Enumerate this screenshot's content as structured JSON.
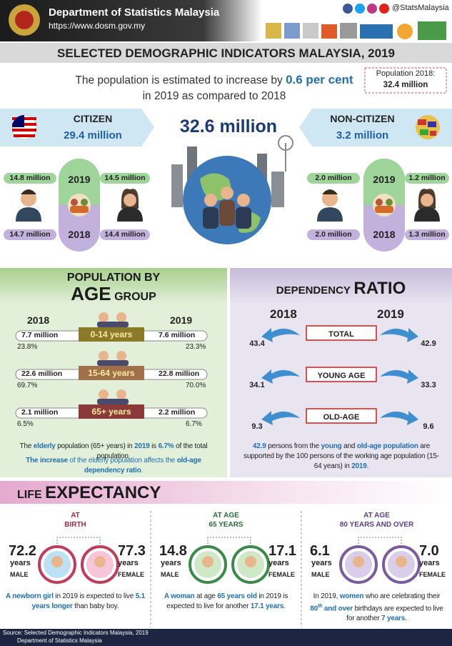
{
  "header": {
    "org": "Department of Statistics Malaysia",
    "url": "https://www.dosm.gov.my",
    "social": "@StatsMalaysia"
  },
  "title": "SELECTED DEMOGRAPHIC INDICATORS MALAYSIA, 2019",
  "intro": {
    "parts": [
      "The population is estimated to increase by ",
      "0.6 per cent",
      "in 2019 as compared to 2018"
    ],
    "box_label": "Population 2018:",
    "box_value": "32.4 million"
  },
  "total": "32.6 million",
  "citizen": {
    "label": "CITIZEN",
    "value": "29.4  million",
    "year_top": "2019",
    "year_bottom": "2018",
    "male_2019": "14.8 million",
    "female_2019": "14.5 million",
    "male_2018": "14.7 million",
    "female_2018": "14.4  million"
  },
  "non_citizen": {
    "label": "NON-CITIZEN",
    "value": "3.2 million",
    "year_top": "2019",
    "year_bottom": "2018",
    "male_2019": "2.0 million",
    "female_2019": "1.2 million",
    "male_2018": "2.0 million",
    "female_2018": "1.3 million"
  },
  "age_group": {
    "title": [
      "POPULATION BY",
      "AGE",
      "GROUP"
    ],
    "year_left": "2018",
    "year_right": "2019",
    "rows": [
      {
        "group": "0-14 years",
        "left_value": "7.7 million",
        "left_share": "23.8%",
        "right_value": "7.6 million",
        "right_share": "23.3%"
      },
      {
        "group": "15-64 years",
        "left_value": "22.6 million",
        "left_share": "69.7%",
        "right_value": "22.8 million",
        "right_share": "70.0%"
      },
      {
        "group": "65+ years",
        "left_value": "2.1 million",
        "left_share": "6.5%",
        "right_value": "2.2 million",
        "right_share": "6.7%"
      }
    ],
    "note1": [
      "The ",
      "elderly",
      " population (65+ years) in ",
      "2019",
      " is ",
      "6.7%",
      " of the total population."
    ],
    "note2": [
      "The increase",
      " of the elderly population affects the ",
      "old-age dependency ratio",
      "."
    ]
  },
  "dependency": {
    "title": [
      "DEPENDENCY",
      "RATIO"
    ],
    "year_left": "2018",
    "year_right": "2019",
    "rows": [
      {
        "label": "TOTAL",
        "left": "43.4",
        "right": "42.9"
      },
      {
        "label": "YOUNG AGE",
        "left": "34.1",
        "right": "33.3"
      },
      {
        "label": "OLD-AGE",
        "left": "9.3",
        "right": "9.6"
      }
    ],
    "note": [
      "42.9",
      " persons from the ",
      "young",
      " and ",
      "old-age population",
      " are supported by the 100 persons of the working age population (15-64 years) in ",
      "2019",
      "."
    ]
  },
  "life_expectancy": {
    "title": [
      "LIFE",
      "EXPECTANCY"
    ],
    "panels": [
      {
        "heading": [
          "AT",
          "BIRTH"
        ],
        "male": "72.2",
        "female": "77.3",
        "unit": "years",
        "male_label": "MALE",
        "female_label": "FEMALE",
        "note": [
          "A newborn girl",
          " in 2019 is expected to live ",
          "5.1 years longer",
          " than baby boy."
        ]
      },
      {
        "heading": [
          "AT AGE",
          "65 YEARS"
        ],
        "male": "14.8",
        "female": "17.1",
        "unit": "years",
        "male_label": "MALE",
        "female_label": "FEMALE",
        "note": [
          "A woman",
          " at age ",
          "65 years old",
          " in 2019 is expected to live for another ",
          "17.1 years",
          "."
        ]
      },
      {
        "heading": [
          "AT AGE",
          "80 YEARS AND OVER"
        ],
        "male": "6.1",
        "female": "7.0",
        "unit": "years",
        "male_label": "MALE",
        "female_label": "FEMALE",
        "note": [
          "In 2019, ",
          "women",
          " who are celebrating their ",
          "80",
          "th",
          " and over",
          " birthdays are expected to live for another ",
          " 7 years",
          "."
        ]
      }
    ]
  },
  "footer": {
    "source": "Source: Selected Demographic Indicators Malaysia, 2019",
    "org": "Department of Statistics Malaysia"
  }
}
